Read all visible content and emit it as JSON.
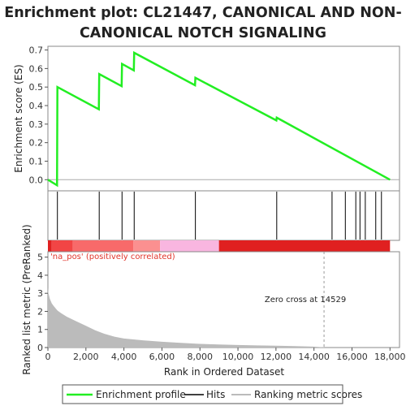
{
  "title_lines": [
    "Enrichment plot: CL21447, CANONICAL AND NON-",
    "CANONICAL NOTCH SIGNALING"
  ],
  "colors": {
    "enrichment_line": "#22ee22",
    "hit_line": "#000000",
    "metric_fill": "#bbbbbb",
    "zero_cross": "#999999",
    "heat_band": [
      "#e02020",
      "#f24545",
      "#f86a6a",
      "#fb9090",
      "#f9b6e0"
    ]
  },
  "chart_data": [
    {
      "type": "line",
      "name": "enrichment-profile",
      "ylabel": "Enrichment score (ES)",
      "xlim": [
        0,
        18500
      ],
      "ylim": [
        -0.06,
        0.72
      ],
      "yticks": [
        0.0,
        0.1,
        0.2,
        0.3,
        0.4,
        0.5,
        0.6,
        0.7
      ],
      "ytick_labels": [
        "0.0",
        "0.1",
        "0.2",
        "0.3",
        "0.4",
        "0.5",
        "0.6",
        "0.7"
      ],
      "grid": false,
      "x": [
        0,
        480,
        500,
        2680,
        2700,
        3880,
        3900,
        4520,
        4540,
        7740,
        7760,
        12020,
        12040,
        18000
      ],
      "y": [
        0.0,
        -0.03,
        0.5,
        0.38,
        0.57,
        0.505,
        0.625,
        0.59,
        0.685,
        0.51,
        0.55,
        0.32,
        0.335,
        0.0
      ]
    },
    {
      "type": "scatter",
      "name": "hits",
      "hit_positions": [
        500,
        2700,
        3900,
        4540,
        7760,
        12040,
        14950,
        15650,
        16200,
        16420,
        16700,
        17250,
        17550
      ]
    },
    {
      "type": "area",
      "name": "ranking-metric",
      "xlabel": "Rank in Ordered Dataset",
      "ylabel": "Ranked list metric (PreRanked)",
      "xlim": [
        0,
        18500
      ],
      "ylim": [
        0,
        5.3
      ],
      "xticks": [
        0,
        2000,
        4000,
        6000,
        8000,
        10000,
        12000,
        14000,
        16000,
        18000
      ],
      "xtick_labels": [
        "0",
        "2,000",
        "4,000",
        "6,000",
        "8,000",
        "10,000",
        "12,000",
        "14,000",
        "16,000",
        "18,000"
      ],
      "yticks": [
        0,
        1,
        2,
        3,
        4,
        5
      ],
      "ytick_labels": [
        "0",
        "1",
        "2",
        "3",
        "4",
        "5"
      ],
      "x": [
        0,
        30,
        100,
        200,
        300,
        500,
        700,
        1000,
        1500,
        2000,
        2500,
        3000,
        3500,
        4000,
        5000,
        6000,
        7000,
        8000,
        9000,
        10000,
        11000,
        12000,
        13000,
        14000,
        14529,
        14530
      ],
      "y": [
        3.3,
        3.0,
        2.7,
        2.45,
        2.3,
        2.05,
        1.9,
        1.7,
        1.45,
        1.2,
        0.95,
        0.75,
        0.6,
        0.5,
        0.4,
        0.32,
        0.26,
        0.2,
        0.17,
        0.14,
        0.12,
        0.1,
        0.08,
        0.05,
        0.01,
        0.0
      ],
      "zero_cross_x": 14529,
      "zero_cross_label": "Zero cross at 14529",
      "pos_label": "'na_pos' (positively correlated)",
      "heat_segments": [
        [
          0,
          200
        ],
        [
          200,
          1300
        ],
        [
          1300,
          4500
        ],
        [
          4500,
          5900
        ],
        [
          5900,
          9000
        ],
        [
          9000,
          18000
        ]
      ]
    }
  ],
  "legend": {
    "items": [
      {
        "label": "Enrichment profile",
        "kind": "line"
      },
      {
        "label": "Hits",
        "kind": "hit"
      },
      {
        "label": "Ranking metric scores",
        "kind": "metric"
      }
    ]
  }
}
